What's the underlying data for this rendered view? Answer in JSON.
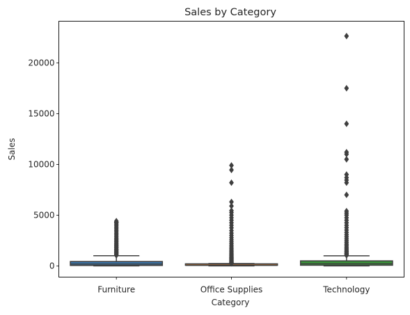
{
  "chart_data": {
    "type": "box",
    "title": "Sales by Category",
    "xlabel": "Category",
    "ylabel": "Sales",
    "ylim": [
      -1100,
      24100
    ],
    "yticks": [
      0,
      5000,
      10000,
      15000,
      20000
    ],
    "categories": [
      "Furniture",
      "Office Supplies",
      "Technology"
    ],
    "boxes": [
      {
        "category": "Furniture",
        "color": "#3a75a8",
        "min": 1.9,
        "q1": 47,
        "median": 182,
        "q3": 436,
        "whisker_high": 1005,
        "outliers": [
          1050,
          1120,
          1200,
          1290,
          1380,
          1470,
          1560,
          1650,
          1750,
          1850,
          1950,
          2050,
          2150,
          2260,
          2380,
          2500,
          2620,
          2750,
          2900,
          3050,
          3200,
          3350,
          3500,
          3650,
          3800,
          3950,
          4100,
          4230,
          4300,
          4416
        ]
      },
      {
        "category": "Office Supplies",
        "color": "#e1812c",
        "min": 0.4,
        "q1": 17,
        "median": 55,
        "q3": 138,
        "whisker_high": 235,
        "outliers": [
          260,
          300,
          350,
          400,
          460,
          520,
          590,
          660,
          740,
          820,
          900,
          1000,
          1100,
          1200,
          1320,
          1450,
          1580,
          1720,
          1870,
          2030,
          2200,
          2380,
          2570,
          2780,
          3000,
          3230,
          3480,
          3750,
          4000,
          4250,
          4500,
          4750,
          5000,
          5250,
          5450,
          5900,
          6300,
          8200,
          9450,
          9900
        ]
      },
      {
        "category": "Technology",
        "color": "#3a923a",
        "min": 0.99,
        "q1": 68,
        "median": 210,
        "q3": 500,
        "whisker_high": 1000,
        "outliers": [
          1050,
          1130,
          1220,
          1320,
          1430,
          1550,
          1680,
          1820,
          1970,
          2130,
          2300,
          2480,
          2670,
          2870,
          3080,
          3300,
          3530,
          3770,
          4000,
          4250,
          4500,
          4750,
          5000,
          5200,
          5400,
          7000,
          8200,
          8450,
          8700,
          9000,
          10500,
          11000,
          11200,
          14000,
          17500,
          22638
        ]
      }
    ],
    "grid": false,
    "legend": "none"
  },
  "colors": {
    "line": "#3f3f3f",
    "text": "#262626",
    "axes": "#000000"
  }
}
